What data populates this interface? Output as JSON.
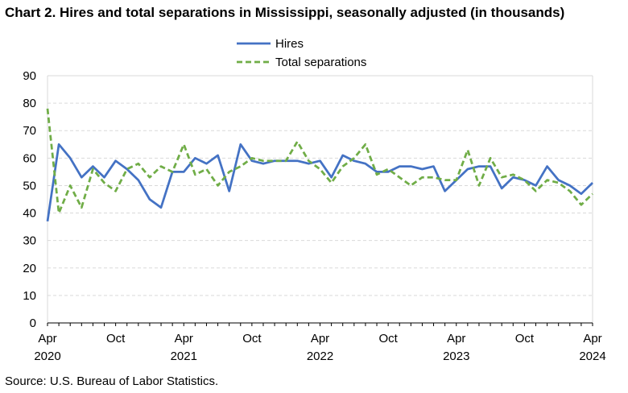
{
  "title": "Chart 2. Hires and total separations in Mississippi, seasonally adjusted (in thousands)",
  "source": "Source: U.S. Bureau of Labor Statistics.",
  "colors": {
    "hires": "#4472c4",
    "separations": "#70ad47",
    "grid": "#d9d9d9",
    "axis": "#000000"
  },
  "chart_data": {
    "type": "line",
    "title": "Chart 2. Hires and total separations in Mississippi, seasonally adjusted (in thousands)",
    "xlabel": "",
    "ylabel": "",
    "ylim": [
      0,
      90
    ],
    "yticks": [
      0,
      10,
      20,
      30,
      40,
      50,
      60,
      70,
      80,
      90
    ],
    "grid": true,
    "legend": "top-center",
    "x": [
      "Apr 2020",
      "May 2020",
      "Jun 2020",
      "Jul 2020",
      "Aug 2020",
      "Sep 2020",
      "Oct 2020",
      "Nov 2020",
      "Dec 2020",
      "Jan 2021",
      "Feb 2021",
      "Mar 2021",
      "Apr 2021",
      "May 2021",
      "Jun 2021",
      "Jul 2021",
      "Aug 2021",
      "Sep 2021",
      "Oct 2021",
      "Nov 2021",
      "Dec 2021",
      "Jan 2022",
      "Feb 2022",
      "Mar 2022",
      "Apr 2022",
      "May 2022",
      "Jun 2022",
      "Jul 2022",
      "Aug 2022",
      "Sep 2022",
      "Oct 2022",
      "Nov 2022",
      "Dec 2022",
      "Jan 2023",
      "Feb 2023",
      "Mar 2023",
      "Apr 2023",
      "May 2023",
      "Jun 2023",
      "Jul 2023",
      "Aug 2023",
      "Sep 2023",
      "Oct 2023",
      "Nov 2023",
      "Dec 2023",
      "Jan 2024",
      "Feb 2024",
      "Mar 2024",
      "Apr 2024"
    ],
    "xtick_labels": [
      {
        "index": 0,
        "line1": "Apr",
        "line2": "2020"
      },
      {
        "index": 6,
        "line1": "Oct",
        "line2": ""
      },
      {
        "index": 12,
        "line1": "Apr",
        "line2": "2021"
      },
      {
        "index": 18,
        "line1": "Oct",
        "line2": ""
      },
      {
        "index": 24,
        "line1": "Apr",
        "line2": "2022"
      },
      {
        "index": 30,
        "line1": "Oct",
        "line2": ""
      },
      {
        "index": 36,
        "line1": "Apr",
        "line2": "2023"
      },
      {
        "index": 42,
        "line1": "Oct",
        "line2": ""
      },
      {
        "index": 48,
        "line1": "Apr",
        "line2": "2024"
      }
    ],
    "series": [
      {
        "name": "Hires",
        "style": "solid",
        "values": [
          37,
          65,
          60,
          53,
          57,
          53,
          59,
          56,
          52,
          45,
          42,
          55,
          55,
          60,
          58,
          61,
          48,
          65,
          59,
          58,
          59,
          59,
          59,
          58,
          59,
          53,
          61,
          59,
          58,
          55,
          55,
          57,
          57,
          56,
          57,
          48,
          52,
          56,
          57,
          57,
          49,
          53,
          52,
          50,
          57,
          52,
          50,
          47,
          51
        ]
      },
      {
        "name": "Total separations",
        "style": "dashed",
        "values": [
          78,
          40,
          50,
          42,
          56,
          51,
          48,
          56,
          58,
          53,
          57,
          55,
          65,
          54,
          56,
          50,
          55,
          57,
          60,
          59,
          59,
          59,
          66,
          59,
          56,
          51,
          57,
          60,
          65,
          54,
          56,
          53,
          50,
          53,
          53,
          52,
          52,
          63,
          50,
          60,
          53,
          54,
          52,
          48,
          52,
          51,
          48,
          43,
          47
        ]
      }
    ]
  }
}
